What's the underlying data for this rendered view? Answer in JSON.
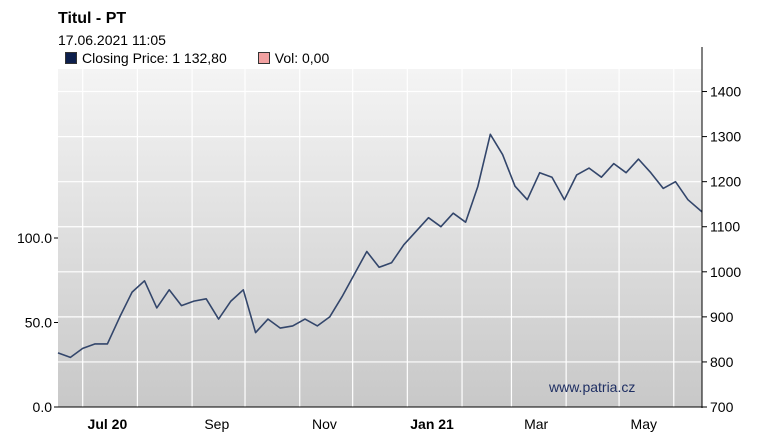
{
  "header": {
    "title": "Titul - PT",
    "timestamp": "17.06.2021 11:05"
  },
  "legend": [
    {
      "label": "Closing Price: 1 132,80",
      "color": "#0d1f4c"
    },
    {
      "label": "Vol: 0,00",
      "color": "#f2a1a1"
    }
  ],
  "watermark": "www.patria.cz",
  "colors": {
    "line": "#33466b",
    "grid": "#ffffff",
    "bg_top": "#f4f4f4",
    "bg_bottom": "#c8c8c8"
  },
  "chart_data": {
    "type": "line",
    "title": "Titul - PT",
    "subtitle": "17.06.2021 11:05",
    "grid": true,
    "legend_position": "top-left",
    "price_axis": {
      "side": "right",
      "min": 700,
      "max": 1450,
      "ticks": [
        "1400",
        "1300",
        "1200",
        "1100",
        "1000",
        "900",
        "800",
        "700"
      ]
    },
    "volume_axis": {
      "side": "left",
      "ticks": [
        "100.0",
        "50.0",
        "0.0"
      ],
      "tick_values": [
        100,
        50,
        0
      ],
      "max": 200
    },
    "x_ticks": [
      {
        "label": "Jul 20",
        "bold": true
      },
      {
        "label": "Sep",
        "bold": false
      },
      {
        "label": "Nov",
        "bold": false
      },
      {
        "label": "Jan 21",
        "bold": true
      },
      {
        "label": "Mar",
        "bold": false
      },
      {
        "label": "May",
        "bold": false
      }
    ],
    "series": [
      {
        "name": "Closing Price",
        "x": [
          "2020-06-17",
          "2020-06-24",
          "2020-07-01",
          "2020-07-08",
          "2020-07-15",
          "2020-07-22",
          "2020-07-29",
          "2020-08-05",
          "2020-08-12",
          "2020-08-19",
          "2020-08-26",
          "2020-09-02",
          "2020-09-09",
          "2020-09-16",
          "2020-09-23",
          "2020-09-30",
          "2020-10-07",
          "2020-10-14",
          "2020-10-21",
          "2020-10-28",
          "2020-11-04",
          "2020-11-11",
          "2020-11-18",
          "2020-11-25",
          "2020-12-02",
          "2020-12-09",
          "2020-12-16",
          "2020-12-23",
          "2020-12-30",
          "2021-01-06",
          "2021-01-13",
          "2021-01-20",
          "2021-01-27",
          "2021-02-03",
          "2021-02-10",
          "2021-02-17",
          "2021-02-24",
          "2021-03-03",
          "2021-03-10",
          "2021-03-17",
          "2021-03-24",
          "2021-03-31",
          "2021-04-07",
          "2021-04-14",
          "2021-04-21",
          "2021-04-28",
          "2021-05-05",
          "2021-05-12",
          "2021-05-19",
          "2021-05-26",
          "2021-06-02",
          "2021-06-09",
          "2021-06-17"
        ],
        "values": [
          820,
          810,
          830,
          840,
          840,
          900,
          955,
          980,
          920,
          960,
          925,
          935,
          940,
          895,
          935,
          960,
          865,
          895,
          875,
          880,
          895,
          880,
          900,
          945,
          995,
          1045,
          1010,
          1020,
          1060,
          1090,
          1120,
          1100,
          1130,
          1110,
          1190,
          1305,
          1260,
          1190,
          1160,
          1220,
          1210,
          1160,
          1215,
          1230,
          1210,
          1240,
          1220,
          1250,
          1220,
          1185,
          1200,
          1160,
          1133
        ]
      }
    ]
  }
}
